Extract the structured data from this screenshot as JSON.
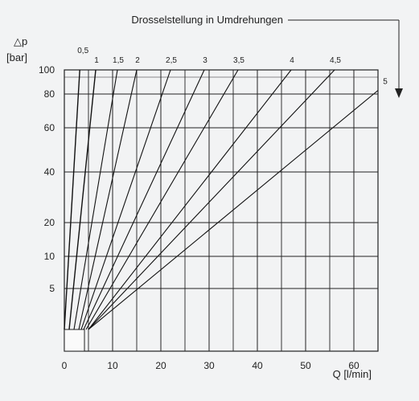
{
  "chart_data": {
    "type": "line",
    "title": "Drosselstellung in Umdrehungen",
    "ylabel_symbol": "△p",
    "ylabel_unit": "[bar]",
    "xlabel": "Q [l/min]",
    "xlim": [
      0,
      65
    ],
    "ylim": [
      0,
      100
    ],
    "x_scale": "linear",
    "y_scale": "nonlinear",
    "y_tick_labels": [
      "5",
      "10",
      "20",
      "40",
      "60",
      "80",
      "100"
    ],
    "y_tick_values": [
      5,
      10,
      20,
      40,
      60,
      80,
      100
    ],
    "x_tick_labels": [
      "0",
      "10",
      "20",
      "30",
      "40",
      "50",
      "60"
    ],
    "x_tick_values": [
      0,
      10,
      20,
      30,
      40,
      50,
      60
    ],
    "grid": true,
    "series": [
      {
        "name": "0,5",
        "points": [
          [
            0,
            0
          ],
          [
            3.2,
            100
          ]
        ]
      },
      {
        "name": "1",
        "points": [
          [
            1,
            0
          ],
          [
            6.5,
            100
          ]
        ]
      },
      {
        "name": "1,5",
        "points": [
          [
            2,
            0
          ],
          [
            11,
            100
          ]
        ]
      },
      {
        "name": "2",
        "points": [
          [
            3,
            0
          ],
          [
            15,
            100
          ]
        ]
      },
      {
        "name": "2,5",
        "points": [
          [
            3.5,
            0
          ],
          [
            22,
            100
          ]
        ]
      },
      {
        "name": "3",
        "points": [
          [
            4,
            0
          ],
          [
            29,
            100
          ]
        ]
      },
      {
        "name": "3,5",
        "points": [
          [
            4.5,
            0
          ],
          [
            36,
            100
          ]
        ]
      },
      {
        "name": "4",
        "points": [
          [
            5,
            0
          ],
          [
            47,
            100
          ]
        ]
      },
      {
        "name": "4,5",
        "points": [
          [
            5,
            0
          ],
          [
            56,
            100
          ]
        ]
      },
      {
        "name": "5",
        "points": [
          [
            5,
            0
          ],
          [
            65,
            83
          ]
        ]
      }
    ]
  }
}
